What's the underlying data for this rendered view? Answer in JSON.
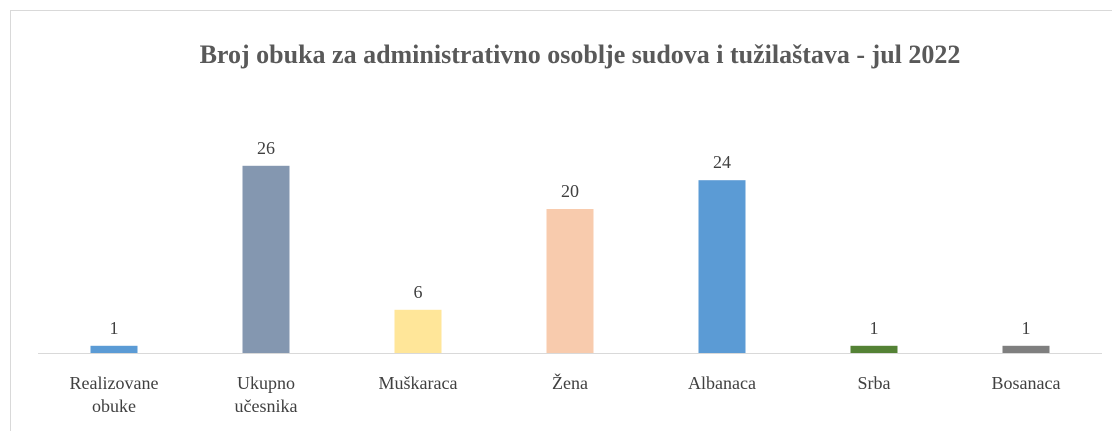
{
  "chart_data": {
    "type": "bar",
    "title": "Broj obuka za administrativno  osoblje sudova i tužilaštava  - jul 2022",
    "categories": [
      "Realizovane obuke",
      "Ukupno učesnika",
      "Muškaraca",
      "Žena",
      "Albanaca",
      "Srba",
      "Bosanaca"
    ],
    "values": [
      1,
      26,
      6,
      20,
      24,
      1,
      1
    ],
    "colors": [
      "#5b9bd5",
      "#8497b0",
      "#ffe699",
      "#f8cbad",
      "#5b9bd5",
      "#548235",
      "#7f7f7f"
    ]
  }
}
